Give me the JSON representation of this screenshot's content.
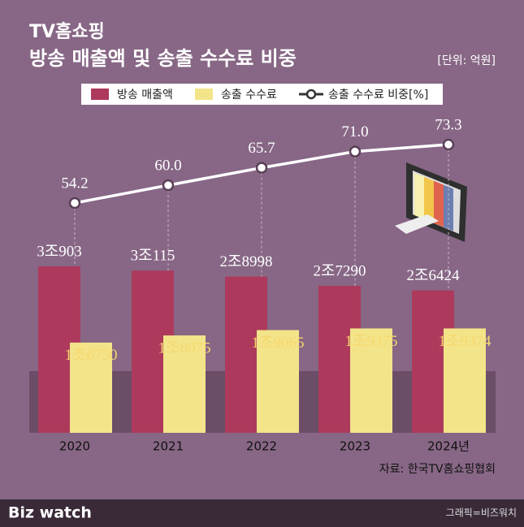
{
  "chart_data": {
    "type": "bar",
    "title": "TV홈쇼핑",
    "subtitle": "방송 매출액 및 송출 수수료 비중",
    "unit": "[단위: 억원]",
    "categories": [
      "2020",
      "2021",
      "2022",
      "2023",
      "2024년"
    ],
    "series": [
      {
        "name": "방송 매출액",
        "type": "bar",
        "color": "#ad3a5c",
        "values": [
          30903,
          30115,
          28998,
          27290,
          26424
        ],
        "value_labels": [
          "3조903",
          "3조115",
          "2조8998",
          "2조7290",
          "2조6424"
        ]
      },
      {
        "name": "송출 수수료",
        "type": "bar",
        "color": "#f3e48a",
        "values": [
          16750,
          18075,
          19065,
          19375,
          19374
        ],
        "value_labels": [
          "1조6750",
          "1조8075",
          "1조9065",
          "1조9375",
          "1조9374"
        ]
      },
      {
        "name": "송출 수수료 비중[%]",
        "type": "line",
        "color": "#ffffff",
        "values": [
          54.2,
          60.0,
          65.7,
          71.0,
          73.3
        ],
        "value_labels": [
          "54.2",
          "60.0",
          "65.7",
          "71.0",
          "73.3"
        ]
      }
    ],
    "source": "자료: 한국TV홈쇼핑협회"
  },
  "footer": {
    "logo": "Biz watch",
    "credit": "그래픽=비즈워치"
  }
}
